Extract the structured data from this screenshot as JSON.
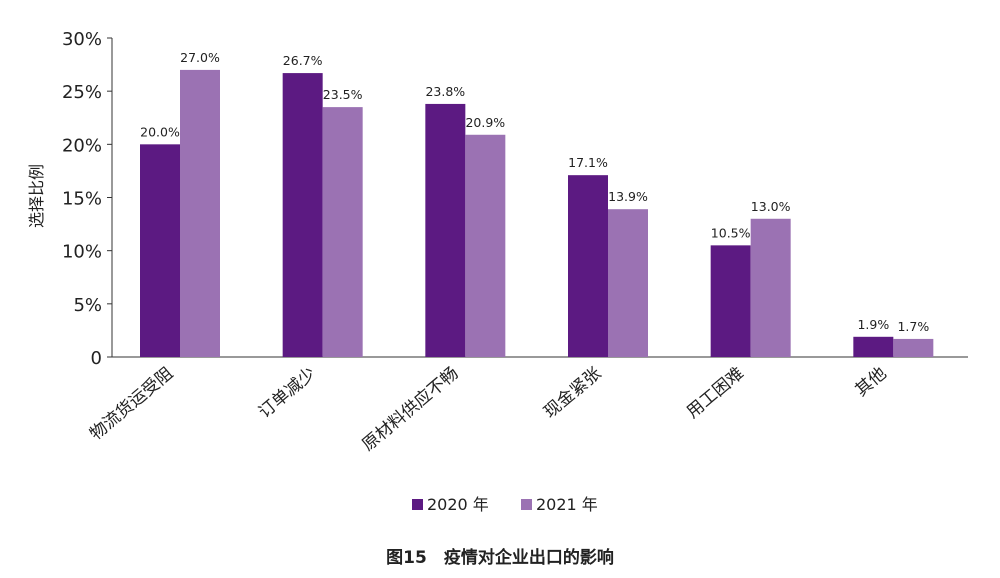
{
  "chart_data": {
    "type": "bar",
    "title": "",
    "caption": "图15　疫情对企业出口的影响",
    "xlabel": "",
    "ylabel": "选择比例",
    "ylim": [
      0,
      30
    ],
    "yticks": [
      "0",
      "5%",
      "10%",
      "15%",
      "20%",
      "25%",
      "30%"
    ],
    "categories": [
      "物流货运受阻",
      "订单减少",
      "原材料供应不畅",
      "现金紧张",
      "用工困难",
      "其他"
    ],
    "series": [
      {
        "name": "2020 年",
        "color": "#5c1a82",
        "values": [
          20.0,
          26.7,
          23.8,
          17.1,
          10.5,
          1.9
        ],
        "labels": [
          "20.0%",
          "26.7%",
          "23.8%",
          "17.1%",
          "10.5%",
          "1.9%"
        ]
      },
      {
        "name": "2021 年",
        "color": "#9b72b3",
        "values": [
          27.0,
          23.5,
          20.9,
          13.9,
          13.0,
          1.7
        ],
        "labels": [
          "27.0%",
          "23.5%",
          "20.9%",
          "13.9%",
          "13.0%",
          "1.7%"
        ]
      }
    ],
    "grid": false,
    "legend_position": "bottom"
  }
}
